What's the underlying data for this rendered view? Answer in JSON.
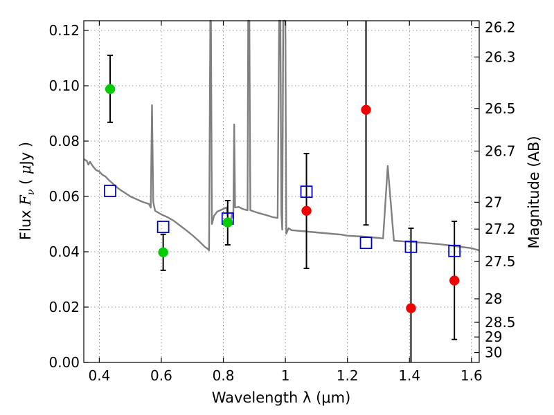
{
  "chart_data": {
    "type": "scatter",
    "xlabel": "Wavelength  λ (μm)",
    "ylabel_left": "Flux  F_ν  ( μJy )",
    "ylabel_right": "Magnitude (AB)",
    "xlim": [
      0.35,
      1.625
    ],
    "ylim": [
      0.0,
      0.1235
    ],
    "x_ticks": [
      0.4,
      0.6,
      0.8,
      1.0,
      1.2,
      1.4,
      1.6
    ],
    "x_tick_labels": [
      "0.4",
      "0.6",
      "0.8",
      "1",
      "1.2",
      "1.4",
      "1.6"
    ],
    "y_ticks": [
      0.0,
      0.02,
      0.04,
      0.06,
      0.08,
      0.1,
      0.12
    ],
    "y_tick_labels": [
      "0.00",
      "0.02",
      "0.04",
      "0.06",
      "0.08",
      "0.10",
      "0.12"
    ],
    "mag_ticks": [
      {
        "label": "26.2",
        "flux": 0.1211
      },
      {
        "label": "26.3",
        "flux": 0.1104
      },
      {
        "label": "26.5",
        "flux": 0.0918
      },
      {
        "label": "26.7",
        "flux": 0.0764
      },
      {
        "label": "27",
        "flux": 0.0579
      },
      {
        "label": "27.2",
        "flux": 0.0482
      },
      {
        "label": "27.5",
        "flux": 0.0365
      },
      {
        "label": "28",
        "flux": 0.023
      },
      {
        "label": "28.5",
        "flux": 0.0145
      },
      {
        "label": "29",
        "flux": 0.0092
      },
      {
        "label": "30",
        "flux": 0.0036
      }
    ],
    "series": [
      {
        "name": "model-spectrum",
        "kind": "line",
        "color": "#808080",
        "points": [
          [
            0.35,
            0.0735
          ],
          [
            0.36,
            0.0728
          ],
          [
            0.365,
            0.0715
          ],
          [
            0.37,
            0.0725
          ],
          [
            0.38,
            0.0708
          ],
          [
            0.39,
            0.0695
          ],
          [
            0.4,
            0.069
          ],
          [
            0.41,
            0.0678
          ],
          [
            0.42,
            0.0672
          ],
          [
            0.43,
            0.066
          ],
          [
            0.44,
            0.065
          ],
          [
            0.45,
            0.064
          ],
          [
            0.46,
            0.063
          ],
          [
            0.47,
            0.0622
          ],
          [
            0.48,
            0.0615
          ],
          [
            0.5,
            0.06
          ],
          [
            0.52,
            0.059
          ],
          [
            0.54,
            0.058
          ],
          [
            0.56,
            0.0573
          ],
          [
            0.566,
            0.056
          ],
          [
            0.57,
            0.093
          ],
          [
            0.574,
            0.058
          ],
          [
            0.58,
            0.0548
          ],
          [
            0.6,
            0.0535
          ],
          [
            0.62,
            0.0525
          ],
          [
            0.64,
            0.0512
          ],
          [
            0.66,
            0.0495
          ],
          [
            0.68,
            0.0478
          ],
          [
            0.7,
            0.046
          ],
          [
            0.72,
            0.044
          ],
          [
            0.74,
            0.0418
          ],
          [
            0.75,
            0.041
          ],
          [
            0.754,
            0.0405
          ],
          [
            0.758,
            0.1235
          ],
          [
            0.76,
            0.1235
          ],
          [
            0.763,
            0.05
          ],
          [
            0.77,
            0.053
          ],
          [
            0.78,
            0.0545
          ],
          [
            0.79,
            0.055
          ],
          [
            0.8,
            0.0555
          ],
          [
            0.81,
            0.056
          ],
          [
            0.815,
            0.052
          ],
          [
            0.822,
            0.05
          ],
          [
            0.828,
            0.054
          ],
          [
            0.832,
            0.052
          ],
          [
            0.835,
            0.086
          ],
          [
            0.838,
            0.056
          ],
          [
            0.85,
            0.0562
          ],
          [
            0.86,
            0.0556
          ],
          [
            0.87,
            0.0552
          ],
          [
            0.878,
            0.055
          ],
          [
            0.88,
            0.1235
          ],
          [
            0.884,
            0.1235
          ],
          [
            0.887,
            0.055
          ],
          [
            0.9,
            0.0545
          ],
          [
            0.92,
            0.0538
          ],
          [
            0.94,
            0.0532
          ],
          [
            0.96,
            0.0525
          ],
          [
            0.975,
            0.0522
          ],
          [
            0.98,
            0.1235
          ],
          [
            0.984,
            0.1235
          ],
          [
            0.987,
            0.054
          ],
          [
            0.99,
            0.048
          ],
          [
            0.993,
            0.1235
          ],
          [
            1.0,
            0.1235
          ],
          [
            1.003,
            0.0465
          ],
          [
            1.01,
            0.0485
          ],
          [
            1.02,
            0.0478
          ],
          [
            1.05,
            0.0475
          ],
          [
            1.1,
            0.047
          ],
          [
            1.15,
            0.0465
          ],
          [
            1.18,
            0.0462
          ],
          [
            1.2,
            0.0458
          ],
          [
            1.25,
            0.0455
          ],
          [
            1.3,
            0.045
          ],
          [
            1.315,
            0.0448
          ],
          [
            1.33,
            0.071
          ],
          [
            1.35,
            0.044
          ],
          [
            1.4,
            0.0436
          ],
          [
            1.45,
            0.0432
          ],
          [
            1.5,
            0.0427
          ],
          [
            1.55,
            0.042
          ],
          [
            1.6,
            0.0413
          ],
          [
            1.625,
            0.0405
          ]
        ]
      },
      {
        "name": "blue-squares",
        "kind": "marker",
        "marker": "square-open",
        "color": "#0000cc",
        "points": [
          [
            0.435,
            0.062
          ],
          [
            0.606,
            0.049
          ],
          [
            0.814,
            0.052
          ],
          [
            1.068,
            0.0617
          ],
          [
            1.26,
            0.0432
          ],
          [
            1.405,
            0.0418
          ],
          [
            1.545,
            0.0403
          ]
        ]
      },
      {
        "name": "green-points",
        "kind": "marker",
        "marker": "circle",
        "color": "#00cc00",
        "points": [
          {
            "x": 0.435,
            "y": 0.0988,
            "lo": 0.0868,
            "hi": 0.111
          },
          {
            "x": 0.606,
            "y": 0.0398,
            "lo": 0.0333,
            "hi": 0.0463
          },
          {
            "x": 0.814,
            "y": 0.0506,
            "lo": 0.0425,
            "hi": 0.0585
          }
        ]
      },
      {
        "name": "red-points",
        "kind": "marker",
        "marker": "circle",
        "color": "#ee0000",
        "points": [
          {
            "x": 1.068,
            "y": 0.0548,
            "lo": 0.034,
            "hi": 0.0755
          },
          {
            "x": 1.26,
            "y": 0.0913,
            "lo": 0.0497,
            "hi": 0.1235
          },
          {
            "x": 1.405,
            "y": 0.0196,
            "lo": 0.0,
            "hi": 0.0485
          },
          {
            "x": 1.545,
            "y": 0.0296,
            "lo": 0.0083,
            "hi": 0.051
          }
        ]
      }
    ]
  }
}
